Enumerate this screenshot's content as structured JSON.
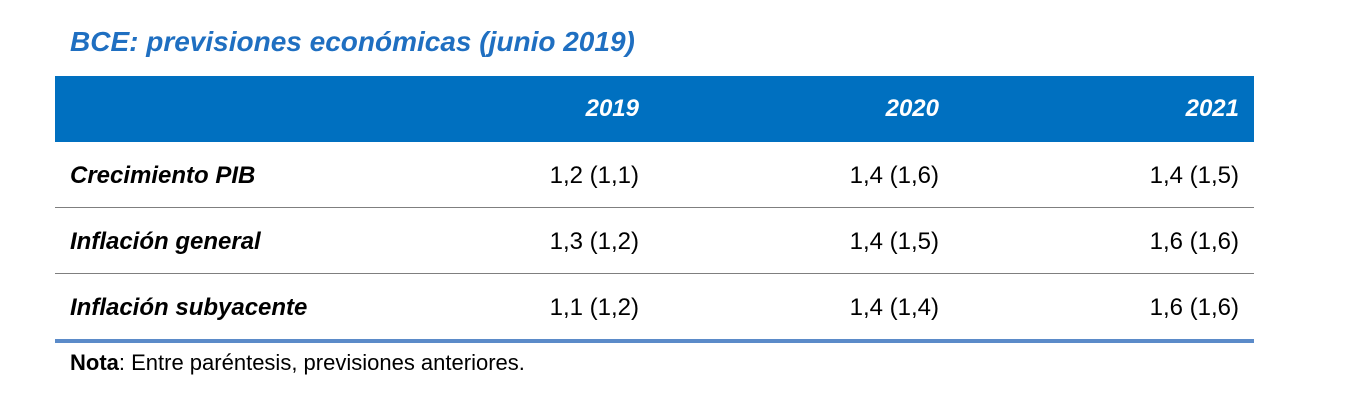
{
  "title": "BCE: previsiones económicas (junio 2019)",
  "table": {
    "columns": [
      "2019",
      "2020",
      "2021"
    ],
    "rows": [
      {
        "label": "Crecimiento PIB",
        "values": [
          "1,2 (1,1)",
          "1,4 (1,6)",
          "1,4 (1,5)"
        ]
      },
      {
        "label": "Inflación general",
        "values": [
          "1,3 (1,2)",
          "1,4 (1,5)",
          "1,6 (1,6)"
        ]
      },
      {
        "label": "Inflación subyacente",
        "values": [
          "1,1 (1,2)",
          "1,4 (1,4)",
          "1,6 (1,6)"
        ]
      }
    ]
  },
  "note": {
    "label": "Nota",
    "text": ": Entre paréntesis, previsiones anteriores."
  },
  "colors": {
    "title": "#1f6fc1",
    "header_bg": "#0070c0",
    "bottom_rule": "#5b8bc9"
  }
}
